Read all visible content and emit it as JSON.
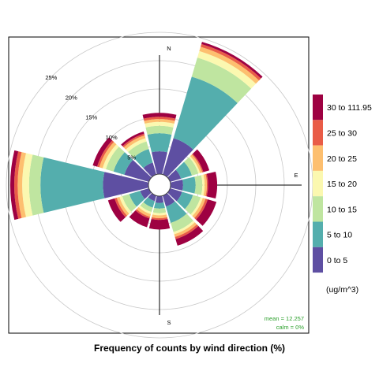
{
  "chart_data": {
    "type": "windrose",
    "title": "Frequency of counts by wind direction (%)",
    "directions": [
      0,
      30,
      60,
      90,
      120,
      150,
      180,
      210,
      240,
      270,
      300,
      330
    ],
    "radial_unit": "%",
    "radial_ticks": [
      5,
      10,
      15,
      20,
      25
    ],
    "radial_tick_labels": [
      "5%",
      "10%",
      "15%",
      "20%",
      "25%"
    ],
    "rmax": 27,
    "compass": [
      "N",
      "E",
      "S"
    ],
    "legend_title": "(ug/m^3)",
    "legend_placement": "right",
    "series": [
      {
        "name": "0 to 5",
        "color": "#5e4fa2",
        "values": [
          4.0,
          6.7,
          2.0,
          2.2,
          2.2,
          2.0,
          1.2,
          1.0,
          1.6,
          8.0,
          4.5,
          2.2
        ]
      },
      {
        "name": "5 to 10",
        "color": "#54aead",
        "values": [
          3.2,
          11.3,
          2.0,
          2.2,
          2.0,
          3.0,
          1.0,
          1.2,
          2.0,
          11.0,
          2.0,
          2.5
        ]
      },
      {
        "name": "10 to 15",
        "color": "#bfe5a0",
        "values": [
          1.3,
          3.5,
          1.2,
          1.2,
          1.4,
          1.7,
          0.8,
          0.8,
          1.3,
          2.0,
          1.4,
          1.4
        ]
      },
      {
        "name": "15 to 20",
        "color": "#fbf8b0",
        "values": [
          0.7,
          1.2,
          0.3,
          0.4,
          0.4,
          0.4,
          0.4,
          0.4,
          0.5,
          1.2,
          0.6,
          0.6
        ]
      },
      {
        "name": "20 to 25",
        "color": "#fdbf6f",
        "values": [
          0.5,
          0.8,
          0.4,
          0.4,
          0.5,
          0.5,
          0.5,
          0.5,
          0.5,
          0.8,
          0.6,
          0.5
        ]
      },
      {
        "name": "25 to 30",
        "color": "#e95c47",
        "values": [
          0.4,
          0.5,
          0.2,
          0.2,
          0.4,
          0.4,
          0.3,
          0.3,
          0.4,
          0.6,
          0.4,
          0.3
        ]
      },
      {
        "name": "30 to 111.95",
        "color": "#9e0142",
        "values": [
          0.7,
          0.4,
          1.1,
          1.6,
          1.6,
          1.2,
          1.7,
          1.6,
          1.2,
          0.7,
          0.8,
          0.4
        ]
      }
    ],
    "stats": {
      "mean_label": "mean = 12.257",
      "calm_label": "calm = 0%"
    },
    "stats_color": "#2ca02c",
    "grid": true
  }
}
